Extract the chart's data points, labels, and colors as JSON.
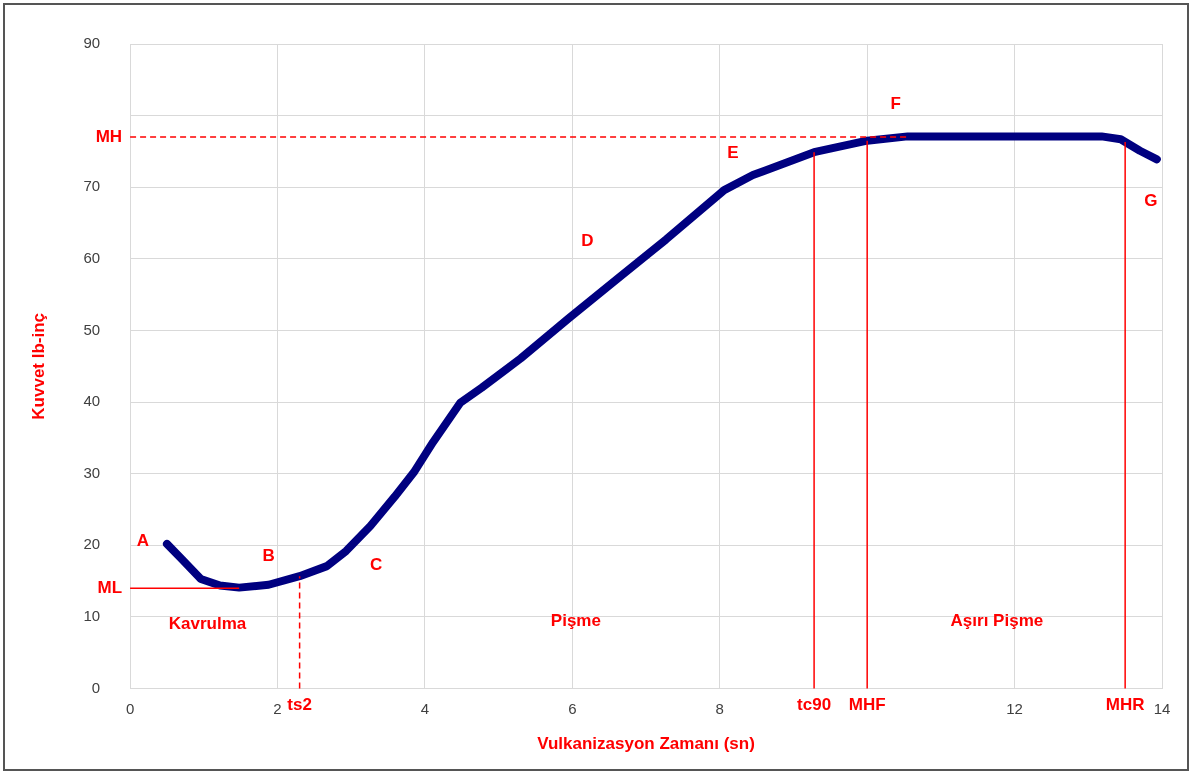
{
  "chart_data": {
    "type": "line",
    "xlabel": "Vulkanizasyon Zamanı (sn)",
    "ylabel": "Kuvvet lb-inç",
    "x": [
      0.5,
      0.7,
      0.96,
      1.22,
      1.48,
      1.88,
      2.3,
      2.67,
      2.93,
      3.26,
      3.59,
      3.85,
      4.11,
      4.48,
      4.77,
      5.3,
      5.95,
      6.61,
      7.27,
      8.06,
      8.45,
      9.28,
      10.0,
      10.55,
      13.18,
      13.44,
      13.7,
      13.93
    ],
    "series": [
      {
        "color": "#000080",
        "values": [
          20.2,
          18.1,
          15.3,
          14.4,
          14.1,
          14.5,
          15.7,
          17.1,
          19.2,
          22.7,
          26.8,
          30.2,
          34.4,
          39.9,
          42,
          46.1,
          51.7,
          57.2,
          62.7,
          69.6,
          71.7,
          74.9,
          76.5,
          77.1,
          77.1,
          76.7,
          75.1,
          73.9
        ]
      }
    ],
    "xlim": [
      0,
      14
    ],
    "xticks": [
      0,
      2,
      4,
      6,
      8,
      {
        "value": 10,
        "label": null
      },
      12,
      14
    ],
    "ylim": [
      0,
      90
    ],
    "yticks": [
      0,
      10,
      20,
      30,
      40,
      50,
      60,
      70,
      {
        "value": 80,
        "label": null
      },
      90
    ],
    "grid": true,
    "marker": "none",
    "line_style": "solid",
    "ref_lines": [
      {
        "axis": "y",
        "value": 77,
        "label": "MH",
        "color": "#ff0000",
        "line_style": "dashed"
      },
      {
        "axis": "y",
        "value": 14,
        "label": "ML",
        "color": "#ff0000",
        "line_style": "solid"
      },
      {
        "axis": "x",
        "value": 2.3,
        "label": "ts2",
        "color": "#ff0000",
        "line_style": "dashed"
      },
      {
        "axis": "x",
        "value": 9.28,
        "label": "tc90",
        "color": "#ff0000",
        "line_style": "solid"
      },
      {
        "axis": "x",
        "value": 10.0,
        "label": "MHF",
        "color": "#ff0000",
        "line_style": "solid"
      },
      {
        "axis": "x",
        "value": 13.5,
        "label": "MHR",
        "color": "#ff0000",
        "line_style": "solid"
      }
    ],
    "annotations": [
      {
        "text": "A",
        "x": 0.5,
        "y": 20.2
      },
      {
        "text": "B",
        "x": 1.88,
        "y": 14.5
      },
      {
        "text": "C",
        "x": 2.93,
        "y": 19.2
      },
      {
        "text": "D",
        "x": 6.61,
        "y": 57.2
      },
      {
        "text": "E",
        "x": 8.45,
        "y": 71.7
      },
      {
        "text": "F",
        "x": 10.55,
        "y": 77.1
      },
      {
        "text": "G",
        "x": 13.93,
        "y": 73.9
      },
      "Kavrulma",
      "Pişme",
      "Aşırı Pişme"
    ]
  }
}
